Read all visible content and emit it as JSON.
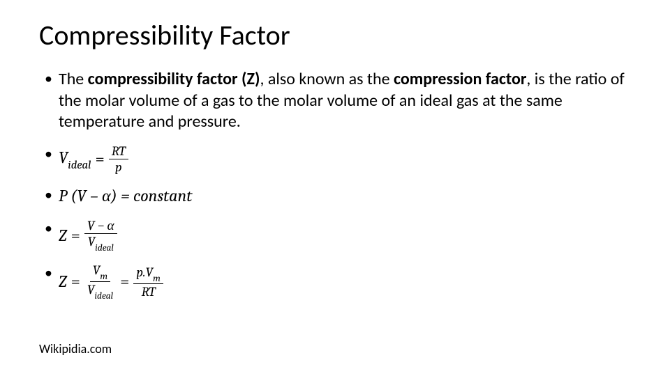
{
  "colors": {
    "background": "#ffffff",
    "text": "#000000"
  },
  "fonts": {
    "title_family": "Calibri Light",
    "body_family": "Calibri",
    "math_family": "Cambria Math",
    "title_size_pt": 40,
    "body_size_pt": 24,
    "footer_size_pt": 18
  },
  "title": "Compressibility Factor",
  "bullets": {
    "definition": {
      "t1": "The ",
      "b1": "compressibility factor ",
      "b2": "(Z)",
      "t2": ", also known as the ",
      "b3": "compression factor",
      "t3": ", is the ratio of the molar volume of a gas to the molar volume of an ideal gas at the same temperature and pressure."
    },
    "eq1": {
      "lhs_var": "V",
      "lhs_sub": "ideal",
      "eq": "=",
      "num": "RT",
      "den": "p"
    },
    "eq2": {
      "text": "P (V – α) = constant"
    },
    "eq3": {
      "lhs": "Z",
      "eq": "=",
      "num_pre": "V − α",
      "den_var": "V",
      "den_sub": "ideal"
    },
    "eq4": {
      "lhs": "Z",
      "eq1": "=",
      "num1_var": "V",
      "num1_sub": "m",
      "den1_var": "V",
      "den1_sub": "ideal",
      "eq2": "=",
      "num2_a": "p.V",
      "num2_sub": "m",
      "den2": "RT"
    }
  },
  "footer": "Wikipidia.com"
}
